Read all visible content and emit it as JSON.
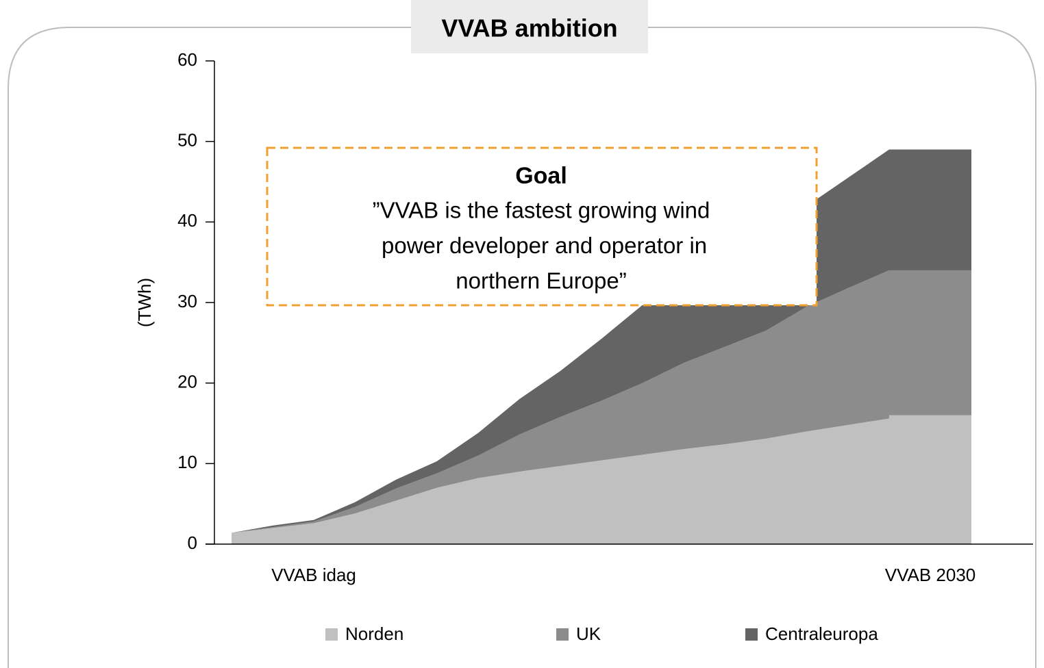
{
  "chart_data": {
    "type": "area",
    "title": "VVAB ambition",
    "y_label": "(TWh)",
    "stacked": true,
    "bar_last": true,
    "categories": [
      null,
      null,
      "VVAB idag",
      null,
      null,
      null,
      null,
      null,
      null,
      null,
      null,
      null,
      null,
      null,
      null,
      null,
      null,
      "VVAB 2030"
    ],
    "series": [
      {
        "name": "Norden",
        "color": "#c0c0c0",
        "values": [
          1.4,
          2.0,
          2.6,
          3.8,
          5.4,
          7.0,
          8.2,
          9.0,
          9.7,
          10.4,
          11.1,
          11.8,
          12.4,
          13.1,
          14.0,
          14.8,
          15.6,
          16
        ]
      },
      {
        "name": "UK",
        "color": "#8c8c8c",
        "values": [
          0,
          0.1,
          0.2,
          0.8,
          1.5,
          1.8,
          2.8,
          4.6,
          6.1,
          7.4,
          8.9,
          10.7,
          12.1,
          13.4,
          15.5,
          17.0,
          18.4,
          18
        ]
      },
      {
        "name": "Centraleuropa",
        "color": "#646464",
        "values": [
          0,
          0.2,
          0.2,
          0.6,
          1.1,
          1.5,
          2.8,
          4.4,
          5.7,
          7.7,
          9.7,
          10.5,
          11.5,
          12.5,
          12.5,
          13.7,
          15.0,
          15
        ]
      }
    ],
    "ylim": [
      0,
      60
    ],
    "yticks": [
      0,
      10,
      20,
      30,
      40,
      50,
      60
    ],
    "annotation": {
      "title": "Goal",
      "lines": [
        "”VVAB is the fastest growing wind",
        " power developer and operator in",
        "northern Europe”"
      ]
    }
  }
}
